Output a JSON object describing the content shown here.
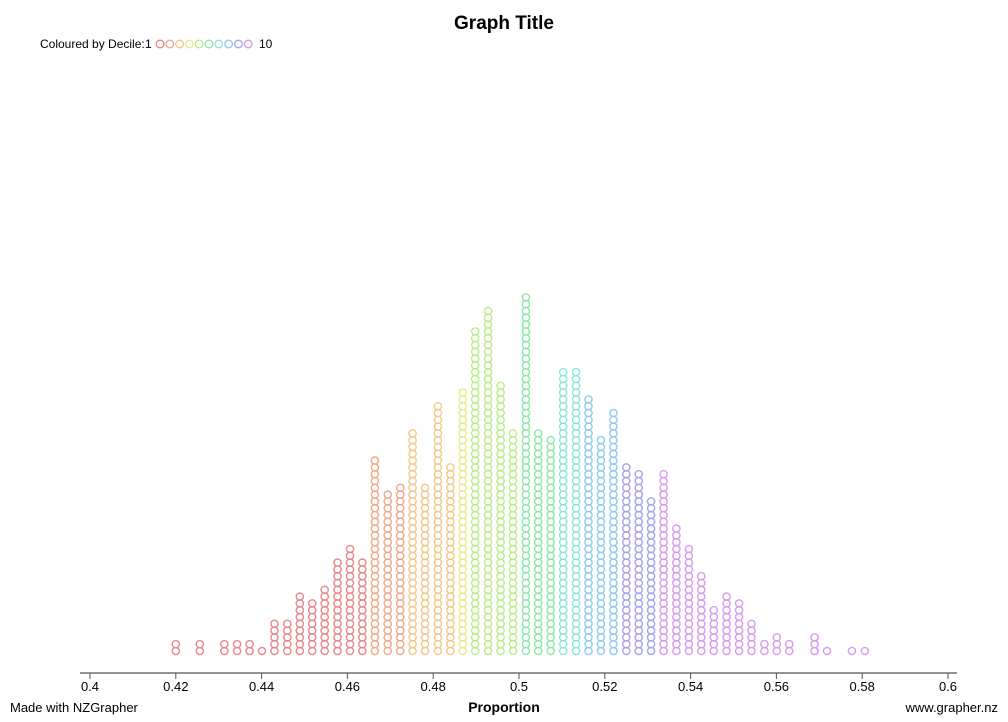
{
  "chart_data": {
    "type": "scatter",
    "subtype": "dot plot",
    "title": "Graph Title",
    "xlabel": "Proportion",
    "ylabel": "",
    "xlim": [
      0.4,
      0.6
    ],
    "x_ticks": [
      "0.4",
      "0.42",
      "0.44",
      "0.46",
      "0.48",
      "0.5",
      "0.52",
      "0.54",
      "0.56",
      "0.58",
      "0.6"
    ],
    "legend": {
      "label": "Coloured by Decile:",
      "start": "1",
      "end": "10",
      "placement": "top-left",
      "colors": [
        "#e8868a",
        "#f0a98a",
        "#f2c98a",
        "#e6ea8a",
        "#b8ee8a",
        "#8ee8a6",
        "#8ee6d8",
        "#8ecbee",
        "#a8a2ee",
        "#d89aee"
      ]
    },
    "bins": [
      {
        "x": 0.42,
        "count": 2,
        "decile": 1
      },
      {
        "x": 0.4256,
        "count": 2,
        "decile": 1
      },
      {
        "x": 0.4313,
        "count": 2,
        "decile": 1
      },
      {
        "x": 0.4343,
        "count": 2,
        "decile": 1
      },
      {
        "x": 0.4372,
        "count": 2,
        "decile": 1
      },
      {
        "x": 0.4401,
        "count": 1,
        "decile": 1
      },
      {
        "x": 0.443,
        "count": 5,
        "decile": 1
      },
      {
        "x": 0.446,
        "count": 5,
        "decile": 1
      },
      {
        "x": 0.4489,
        "count": 9,
        "decile": 1
      },
      {
        "x": 0.4518,
        "count": 8,
        "decile": 1
      },
      {
        "x": 0.4547,
        "count": 10,
        "decile": 1
      },
      {
        "x": 0.4577,
        "count": 14,
        "decile": 1
      },
      {
        "x": 0.4606,
        "count": 16,
        "decile": 1
      },
      {
        "x": 0.4635,
        "count": 14,
        "decile": 1
      },
      {
        "x": 0.4664,
        "count": 29,
        "decile": 2
      },
      {
        "x": 0.4694,
        "count": 24,
        "decile": 2
      },
      {
        "x": 0.4723,
        "count": 25,
        "decile": 2
      },
      {
        "x": 0.4752,
        "count": 33,
        "decile": 3
      },
      {
        "x": 0.4781,
        "count": 25,
        "decile": 3
      },
      {
        "x": 0.4811,
        "count": 37,
        "decile": 3
      },
      {
        "x": 0.484,
        "count": 28,
        "decile": 3
      },
      {
        "x": 0.4869,
        "count": 39,
        "decile": 4
      },
      {
        "x": 0.4898,
        "count": 48,
        "decile": 5
      },
      {
        "x": 0.4928,
        "count": 51,
        "decile": 5
      },
      {
        "x": 0.4957,
        "count": 40,
        "decile": 5
      },
      {
        "x": 0.4986,
        "count": 33,
        "decile": 5
      },
      {
        "x": 0.5016,
        "count": 53,
        "decile": 6
      },
      {
        "x": 0.5045,
        "count": 33,
        "decile": 6
      },
      {
        "x": 0.5074,
        "count": 32,
        "decile": 6
      },
      {
        "x": 0.5103,
        "count": 42,
        "decile": 7
      },
      {
        "x": 0.5133,
        "count": 42,
        "decile": 7
      },
      {
        "x": 0.5162,
        "count": 38,
        "decile": 8
      },
      {
        "x": 0.5191,
        "count": 32,
        "decile": 8
      },
      {
        "x": 0.522,
        "count": 36,
        "decile": 8
      },
      {
        "x": 0.525,
        "count": 28,
        "decile": 9
      },
      {
        "x": 0.5279,
        "count": 27,
        "decile": 9
      },
      {
        "x": 0.5308,
        "count": 23,
        "decile": 9
      },
      {
        "x": 0.5337,
        "count": 27,
        "decile": 10
      },
      {
        "x": 0.5367,
        "count": 19,
        "decile": 10
      },
      {
        "x": 0.5396,
        "count": 16,
        "decile": 10
      },
      {
        "x": 0.5425,
        "count": 12,
        "decile": 10
      },
      {
        "x": 0.5454,
        "count": 7,
        "decile": 10
      },
      {
        "x": 0.5484,
        "count": 9,
        "decile": 10
      },
      {
        "x": 0.5513,
        "count": 8,
        "decile": 10
      },
      {
        "x": 0.5542,
        "count": 5,
        "decile": 10
      },
      {
        "x": 0.5572,
        "count": 2,
        "decile": 10
      },
      {
        "x": 0.5601,
        "count": 3,
        "decile": 10
      },
      {
        "x": 0.563,
        "count": 2,
        "decile": 10
      },
      {
        "x": 0.5689,
        "count": 3,
        "decile": 10
      },
      {
        "x": 0.5718,
        "count": 1,
        "decile": 10
      },
      {
        "x": 0.5776,
        "count": 1,
        "decile": 10
      },
      {
        "x": 0.5806,
        "count": 1,
        "decile": 10
      }
    ]
  },
  "footer": {
    "left": "Made with NZGrapher",
    "right": "www.grapher.nz"
  }
}
